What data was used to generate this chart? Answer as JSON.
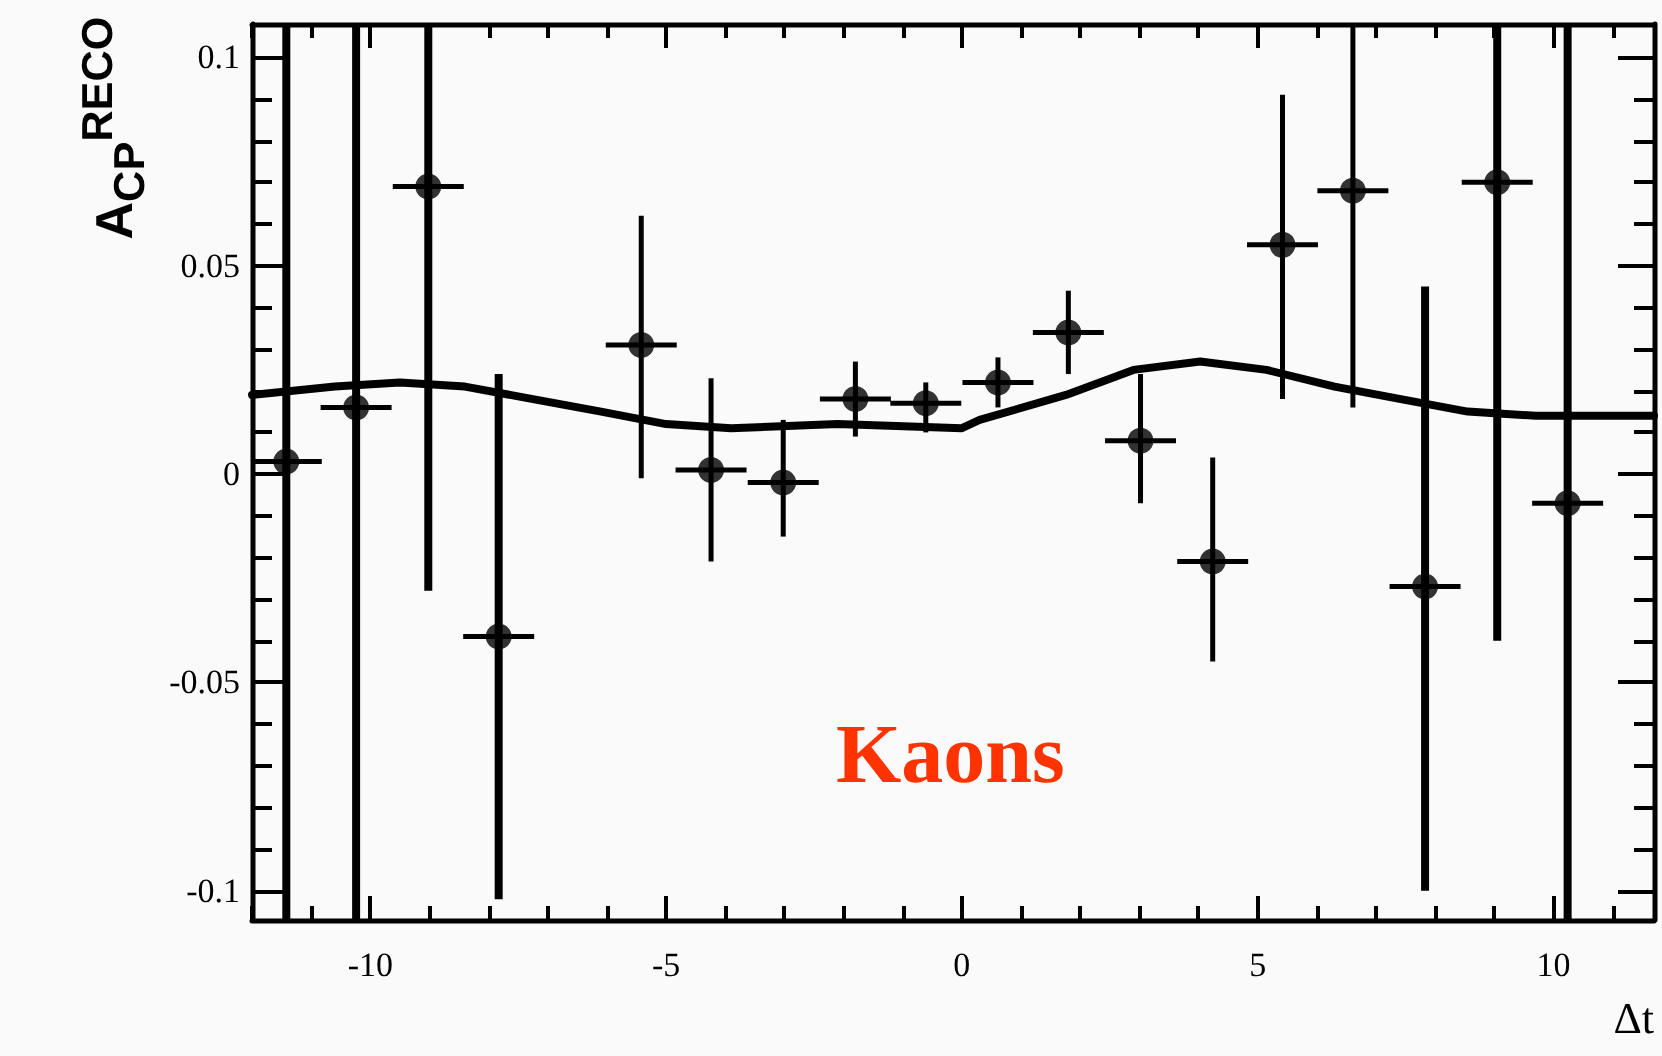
{
  "chart_data": {
    "type": "scatter",
    "xlabel": "Δt",
    "ylabel": "A$_{CP}$$^{RECO}$",
    "annotations": [
      "Kaons"
    ],
    "xlim": [
      -12,
      11.7
    ],
    "ylim": [
      -0.107,
      0.108
    ],
    "xticks": [
      -10,
      -5,
      0,
      5,
      10
    ],
    "yticks": [
      -0.1,
      -0.05,
      0,
      0.05,
      0.1
    ],
    "series": [
      {
        "color": "#000000",
        "marker": "circle",
        "x": [
          -11.42,
          -10.24,
          -9.02,
          -7.83,
          -5.42,
          -4.24,
          -3.02,
          -1.8,
          -0.61,
          0.61,
          1.8,
          3.02,
          4.24,
          5.42,
          6.61,
          7.83,
          9.05,
          10.24
        ],
        "values": [
          0.003,
          0.016,
          0.069,
          -0.039,
          0.031,
          0.001,
          -0.002,
          0.018,
          0.017,
          0.022,
          0.034,
          0.008,
          -0.021,
          0.055,
          0.068,
          -0.027,
          0.07,
          -0.007
        ],
        "errors": [
          [
            -0.107,
            0.108
          ],
          [
            -0.107,
            0.108
          ],
          [
            -0.028,
            0.108
          ],
          [
            -0.102,
            0.024
          ],
          [
            -0.001,
            0.062
          ],
          [
            -0.021,
            0.023
          ],
          [
            -0.015,
            0.013
          ],
          [
            0.009,
            0.027
          ],
          [
            0.01,
            0.022
          ],
          [
            0.016,
            0.028
          ],
          [
            0.024,
            0.044
          ],
          [
            -0.007,
            0.024
          ],
          [
            -0.045,
            0.004
          ],
          [
            0.018,
            0.091
          ],
          [
            0.016,
            0.108
          ],
          [
            -0.1,
            0.045
          ],
          [
            -0.04,
            0.108
          ],
          [
            -0.107,
            0.108
          ]
        ],
        "xerrors": [
          0.6,
          0.6,
          0.6,
          0.6,
          0.6,
          0.6,
          0.6,
          0.6,
          0.6,
          0.6,
          0.6,
          0.6,
          0.6,
          0.6,
          0.6,
          0.6,
          0.6,
          0.6
        ]
      },
      {
        "type": "line",
        "color": "#000000",
        "marker": "none",
        "x": [
          -12,
          -10.6,
          -9.5,
          -8.4,
          -7.25,
          -6.1,
          -5,
          -3.9,
          -2.1,
          0,
          0.3,
          1.76,
          2.9,
          4.03,
          5.15,
          6.3,
          7.42,
          8.55,
          9.7,
          11.7
        ],
        "values": [
          0.019,
          0.021,
          0.022,
          0.021,
          0.018,
          0.015,
          0.012,
          0.011,
          0.012,
          0.011,
          0.013,
          0.019,
          0.025,
          0.027,
          0.025,
          0.021,
          0.018,
          0.015,
          0.014,
          0.014
        ]
      }
    ]
  }
}
